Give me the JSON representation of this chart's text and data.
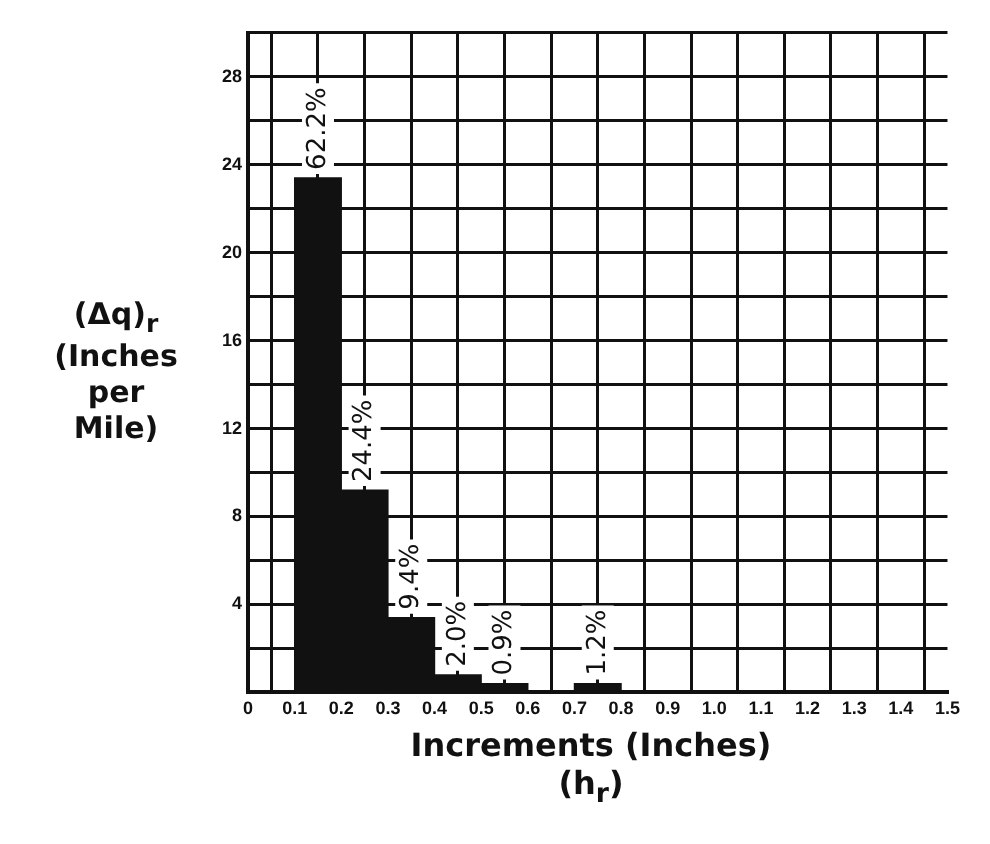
{
  "chart_data": {
    "type": "histogram",
    "xlabel": "Increments (Inches)\n(h$_{r}$)",
    "ylabel": "(Δq)$_{r}$\n(Inches\nper\nMile)",
    "bins": [
      0,
      0.1,
      0.2,
      0.3,
      0.4,
      0.5,
      0.6,
      0.7,
      0.8,
      0.9,
      1.0,
      1.1,
      1.2,
      1.3,
      1.4,
      1.5
    ],
    "values": [
      0,
      23.4,
      9.2,
      3.4,
      0.8,
      0.4,
      0,
      0.4,
      0,
      0,
      0,
      0,
      0,
      0,
      0
    ],
    "annotations": [
      {
        "text": "62.2%",
        "x": 0.15,
        "y": 23.4
      },
      {
        "text": "24.4%",
        "x": 0.25,
        "y": 9.2
      },
      {
        "text": "9.4%",
        "x": 0.35,
        "y": 3.4
      },
      {
        "text": "2.0%",
        "x": 0.45,
        "y": 0.8
      },
      {
        "text": "0.9%",
        "x": 0.55,
        "y": 0.4
      },
      {
        "text": "1.2%",
        "x": 0.75,
        "y": 0.4
      }
    ],
    "color": "#111111",
    "xlim": [
      0,
      1.5
    ],
    "xticks": [
      0,
      0.1,
      0.2,
      0.3,
      0.4,
      0.5,
      0.6,
      0.7,
      0.8,
      0.9,
      {
        "value": 1,
        "label": "1.0"
      },
      1.1,
      1.2,
      1.3,
      1.4,
      1.5
    ],
    "ylim": [
      0,
      30
    ],
    "yticks": [
      {
        "value": 0,
        "label": null
      },
      {
        "value": 2,
        "label": null
      },
      4,
      {
        "value": 6,
        "label": null
      },
      8,
      {
        "value": 10,
        "label": null
      },
      12,
      {
        "value": 14,
        "label": null
      },
      16,
      {
        "value": 18,
        "label": null
      },
      20,
      {
        "value": 22,
        "label": null
      },
      24,
      {
        "value": 26,
        "label": null
      },
      28,
      {
        "value": 30,
        "label": null
      }
    ],
    "grid": true
  }
}
